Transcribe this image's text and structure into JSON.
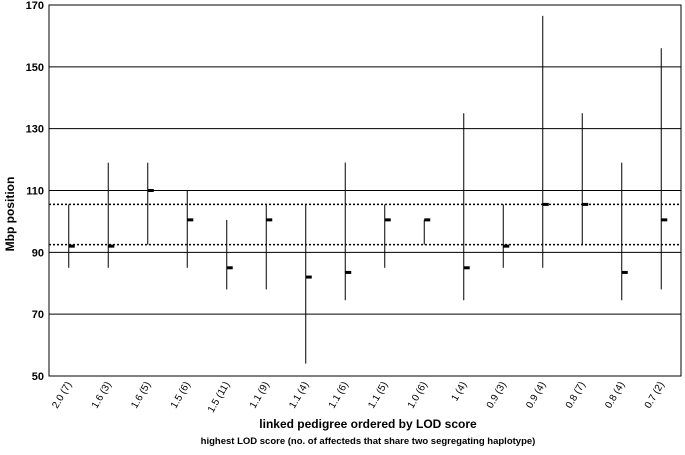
{
  "chart_data": {
    "type": "range",
    "title": "",
    "ylabel": "Mbp position",
    "xlabel": "linked pedigree ordered by LOD score",
    "xlabel_sub": "highest LOD score (no. of affecteds that share two segregating haplotype)",
    "ylim": [
      50,
      170
    ],
    "yticks": [
      50,
      70,
      90,
      110,
      130,
      150,
      170
    ],
    "grid": true,
    "reference_lines": [
      92.5,
      105.5
    ],
    "categories": [
      "2.0 (7)",
      "1.6 (3)",
      "1.6 (5)",
      "1.5 (6)",
      "1.5 (11)",
      "1.1 (9)",
      "1.1 (4)",
      "1.1 (6)",
      "1.1 (5)",
      "1.0 (6)",
      "1 (4)",
      "0.9 (3)",
      "0.9 (4)",
      "0.8 (7)",
      "0.8 (4)",
      "0.7 (2)"
    ],
    "ranges": [
      {
        "low": 85,
        "high": 105.5
      },
      {
        "low": 85,
        "high": 119
      },
      {
        "low": 92.5,
        "high": 119
      },
      {
        "low": 85,
        "high": 110
      },
      {
        "low": 78,
        "high": 100.5
      },
      {
        "low": 78,
        "high": 105.5
      },
      {
        "low": 54,
        "high": 105.5
      },
      {
        "low": 74.5,
        "high": 119
      },
      {
        "low": 85,
        "high": 105.5
      },
      {
        "low": 92.5,
        "high": 100.5
      },
      {
        "low": 74.5,
        "high": 135
      },
      {
        "low": 85,
        "high": 105.5
      },
      {
        "low": 85,
        "high": 166.5
      },
      {
        "low": 92.5,
        "high": 135
      },
      {
        "low": 74.5,
        "high": 119
      },
      {
        "low": 78,
        "high": 156
      }
    ],
    "markers": [
      92,
      92,
      110,
      100.5,
      85,
      100.5,
      82,
      83.5,
      100.5,
      100.5,
      85,
      92,
      105.5,
      105.5,
      83.5,
      100.5
    ]
  }
}
